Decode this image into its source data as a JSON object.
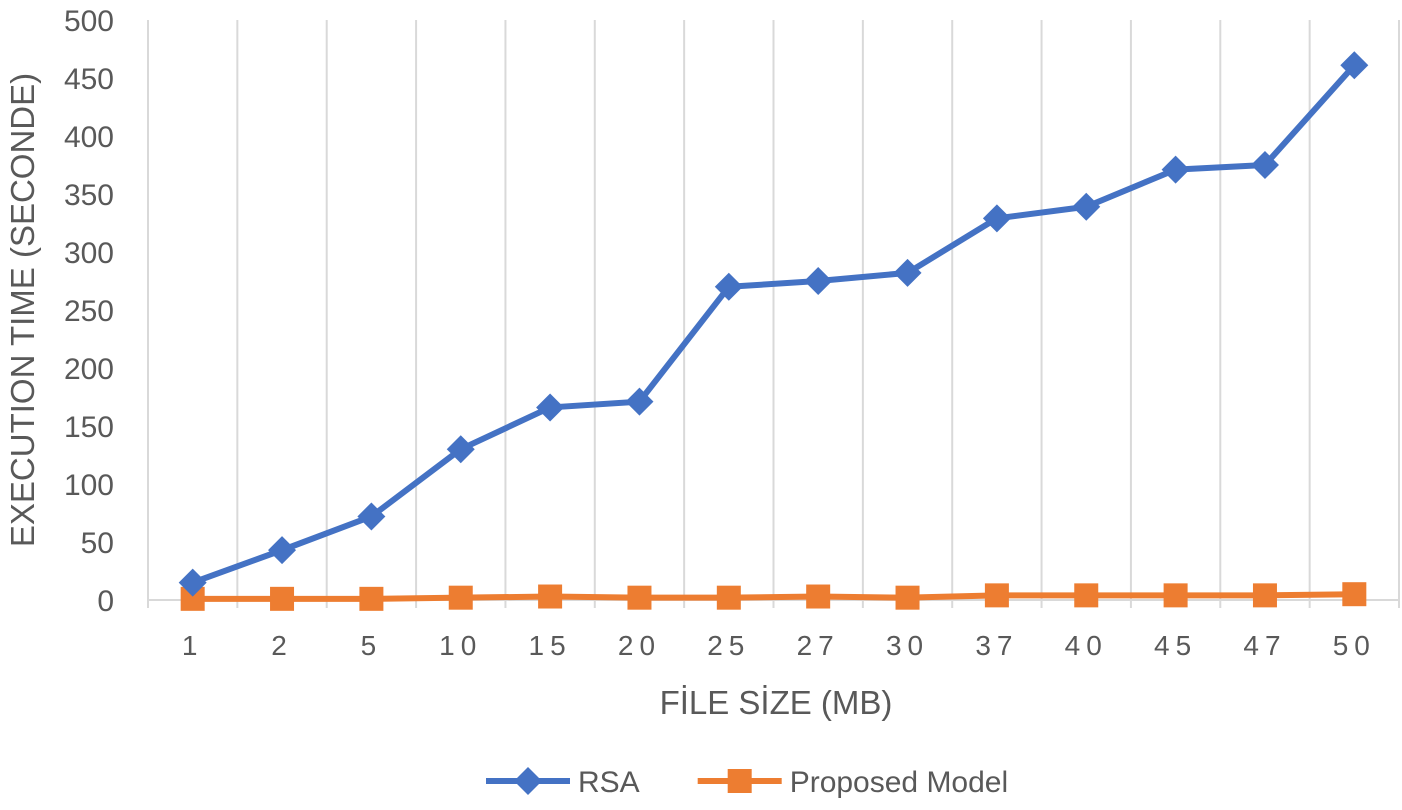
{
  "chart_data": {
    "type": "line",
    "title": "",
    "xlabel": "FİLE SİZE (MB)",
    "ylabel": "EXECUTION TIME (SECONDE)",
    "categories": [
      "1",
      "2",
      "5",
      "10",
      "15",
      "20",
      "25",
      "27",
      "30",
      "37",
      "40",
      "45",
      "47",
      "50"
    ],
    "ylim": [
      0,
      500
    ],
    "yticks": [
      0,
      50,
      100,
      150,
      200,
      250,
      300,
      350,
      400,
      450,
      500
    ],
    "grid": "vertical",
    "legend_position": "bottom",
    "series": [
      {
        "name": "RSA",
        "color": "#4472C4",
        "marker": "diamond",
        "values": [
          15,
          43,
          72,
          130,
          166,
          171,
          270,
          275,
          282,
          329,
          339,
          371,
          375,
          461
        ]
      },
      {
        "name": "Proposed Model",
        "color": "#ED7D31",
        "marker": "square",
        "values": [
          1,
          1,
          1,
          2,
          3,
          2,
          2,
          3,
          2,
          4,
          4,
          4,
          4,
          5
        ]
      }
    ]
  }
}
